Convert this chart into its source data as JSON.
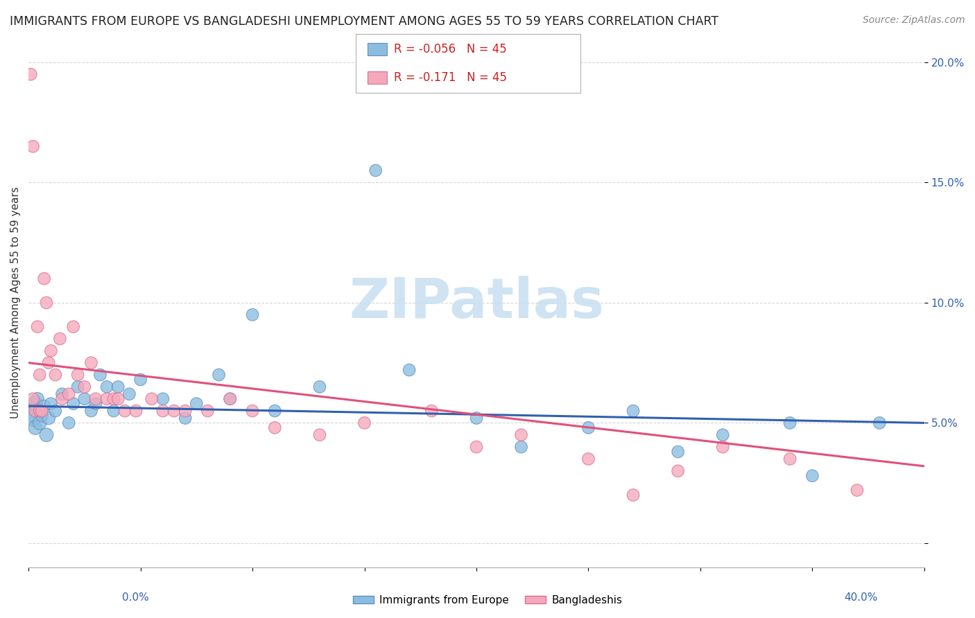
{
  "title": "IMMIGRANTS FROM EUROPE VS BANGLADESHI UNEMPLOYMENT AMONG AGES 55 TO 59 YEARS CORRELATION CHART",
  "source": "Source: ZipAtlas.com",
  "ylabel": "Unemployment Among Ages 55 to 59 years",
  "watermark": "ZIPatlas",
  "legend_blue_label": "Immigrants from Europe",
  "legend_pink_label": "Bangladeshis",
  "R_blue": -0.056,
  "N_blue": 45,
  "R_pink": -0.171,
  "N_pink": 45,
  "blue_scatter_x": [
    0.001,
    0.002,
    0.003,
    0.003,
    0.004,
    0.005,
    0.005,
    0.006,
    0.007,
    0.008,
    0.009,
    0.01,
    0.012,
    0.015,
    0.018,
    0.02,
    0.022,
    0.025,
    0.028,
    0.03,
    0.032,
    0.035,
    0.038,
    0.04,
    0.045,
    0.05,
    0.06,
    0.07,
    0.075,
    0.085,
    0.09,
    0.1,
    0.11,
    0.13,
    0.155,
    0.17,
    0.2,
    0.22,
    0.25,
    0.27,
    0.29,
    0.31,
    0.34,
    0.35,
    0.38
  ],
  "blue_scatter_y": [
    0.055,
    0.052,
    0.058,
    0.048,
    0.06,
    0.05,
    0.055,
    0.053,
    0.057,
    0.045,
    0.052,
    0.058,
    0.055,
    0.062,
    0.05,
    0.058,
    0.065,
    0.06,
    0.055,
    0.058,
    0.07,
    0.065,
    0.055,
    0.065,
    0.062,
    0.068,
    0.06,
    0.052,
    0.058,
    0.07,
    0.06,
    0.095,
    0.055,
    0.065,
    0.155,
    0.072,
    0.052,
    0.04,
    0.048,
    0.055,
    0.038,
    0.045,
    0.05,
    0.028,
    0.05
  ],
  "blue_scatter_sizes": [
    500,
    300,
    250,
    200,
    180,
    200,
    180,
    160,
    160,
    200,
    180,
    160,
    160,
    160,
    160,
    160,
    160,
    160,
    160,
    160,
    160,
    160,
    160,
    160,
    160,
    160,
    160,
    160,
    160,
    160,
    160,
    160,
    160,
    160,
    160,
    160,
    160,
    160,
    160,
    160,
    160,
    160,
    160,
    160,
    160
  ],
  "pink_scatter_x": [
    0.001,
    0.002,
    0.002,
    0.003,
    0.004,
    0.005,
    0.005,
    0.006,
    0.007,
    0.008,
    0.009,
    0.01,
    0.012,
    0.014,
    0.015,
    0.018,
    0.02,
    0.022,
    0.025,
    0.028,
    0.03,
    0.035,
    0.038,
    0.04,
    0.043,
    0.048,
    0.055,
    0.06,
    0.065,
    0.07,
    0.08,
    0.09,
    0.1,
    0.11,
    0.13,
    0.15,
    0.18,
    0.2,
    0.22,
    0.25,
    0.27,
    0.29,
    0.31,
    0.34,
    0.37
  ],
  "pink_scatter_y": [
    0.195,
    0.165,
    0.06,
    0.055,
    0.09,
    0.07,
    0.055,
    0.055,
    0.11,
    0.1,
    0.075,
    0.08,
    0.07,
    0.085,
    0.06,
    0.062,
    0.09,
    0.07,
    0.065,
    0.075,
    0.06,
    0.06,
    0.06,
    0.06,
    0.055,
    0.055,
    0.06,
    0.055,
    0.055,
    0.055,
    0.055,
    0.06,
    0.055,
    0.048,
    0.045,
    0.05,
    0.055,
    0.04,
    0.045,
    0.035,
    0.02,
    0.03,
    0.04,
    0.035,
    0.022
  ],
  "pink_scatter_sizes": [
    160,
    160,
    160,
    160,
    160,
    160,
    160,
    160,
    160,
    160,
    160,
    160,
    160,
    160,
    160,
    160,
    160,
    160,
    160,
    160,
    160,
    160,
    160,
    160,
    160,
    160,
    160,
    160,
    160,
    160,
    160,
    160,
    160,
    160,
    160,
    160,
    160,
    160,
    160,
    160,
    160,
    160,
    160,
    160,
    160
  ],
  "blue_line_x": [
    0.0,
    0.4
  ],
  "blue_line_y": [
    0.057,
    0.05
  ],
  "pink_line_x": [
    0.0,
    0.4
  ],
  "pink_line_y": [
    0.075,
    0.032
  ],
  "xlim": [
    0.0,
    0.4
  ],
  "ylim": [
    -0.01,
    0.21
  ],
  "yticks": [
    0.0,
    0.05,
    0.1,
    0.15,
    0.2
  ],
  "ytick_labels": [
    "",
    "5.0%",
    "10.0%",
    "15.0%",
    "20.0%"
  ],
  "xtick_positions": [
    0.0,
    0.05,
    0.1,
    0.15,
    0.2,
    0.25,
    0.3,
    0.35,
    0.4
  ],
  "background_color": "#ffffff",
  "scatter_blue_color": "#8bbde0",
  "scatter_blue_edge": "#6090c0",
  "scatter_pink_color": "#f5a8bc",
  "scatter_pink_edge": "#d87090",
  "line_blue_color": "#3060b0",
  "line_pink_color": "#e0507a",
  "title_fontsize": 12.5,
  "source_fontsize": 10,
  "watermark_fontsize": 58,
  "watermark_color": "#c8dff0",
  "ylabel_fontsize": 11,
  "legend_fontsize": 12,
  "ytick_fontsize": 11,
  "xtick_label_fontsize": 11
}
